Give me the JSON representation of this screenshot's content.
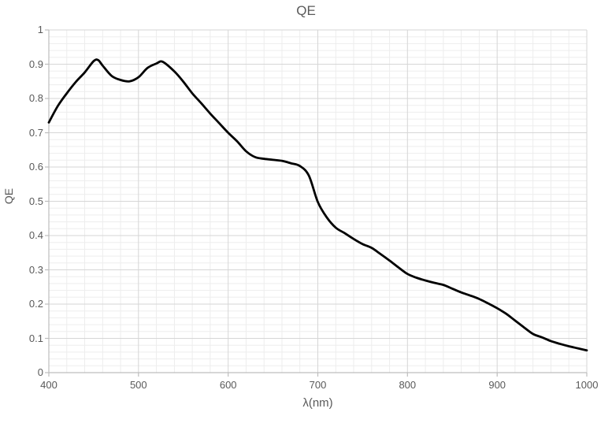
{
  "chart_data": {
    "type": "line",
    "title": "QE",
    "xlabel": "λ(nm)",
    "ylabel": "QE",
    "xlim": [
      400,
      1000
    ],
    "ylim": [
      0,
      1
    ],
    "x_major_unit": 100,
    "x_minor_unit": 20,
    "y_major_unit": 0.1,
    "y_minor_unit": 0.02,
    "grid": "major+minor",
    "legend": "none",
    "x_tick_labels": [
      "400",
      "500",
      "600",
      "700",
      "800",
      "900",
      "1000"
    ],
    "y_tick_labels": [
      "0",
      "0.1",
      "0.2",
      "0.3",
      "0.4",
      "0.5",
      "0.6",
      "0.7",
      "0.8",
      "0.9",
      "1"
    ],
    "colors": {
      "line": "#000000",
      "grid_major": "#d6d6d6",
      "grid_minor": "#ededed",
      "axis": "#bdbdbd",
      "text": "#595959"
    },
    "series": [
      {
        "name": "QE",
        "smooth": true,
        "points": [
          [
            400,
            0.73
          ],
          [
            410,
            0.778
          ],
          [
            420,
            0.815
          ],
          [
            430,
            0.848
          ],
          [
            440,
            0.876
          ],
          [
            450,
            0.909
          ],
          [
            455,
            0.912
          ],
          [
            460,
            0.896
          ],
          [
            470,
            0.866
          ],
          [
            480,
            0.854
          ],
          [
            490,
            0.85
          ],
          [
            500,
            0.862
          ],
          [
            510,
            0.889
          ],
          [
            520,
            0.902
          ],
          [
            527,
            0.907
          ],
          [
            540,
            0.879
          ],
          [
            550,
            0.849
          ],
          [
            560,
            0.815
          ],
          [
            570,
            0.786
          ],
          [
            580,
            0.756
          ],
          [
            590,
            0.728
          ],
          [
            600,
            0.7
          ],
          [
            610,
            0.675
          ],
          [
            620,
            0.646
          ],
          [
            630,
            0.629
          ],
          [
            640,
            0.624
          ],
          [
            650,
            0.621
          ],
          [
            660,
            0.618
          ],
          [
            670,
            0.611
          ],
          [
            680,
            0.603
          ],
          [
            690,
            0.575
          ],
          [
            700,
            0.498
          ],
          [
            710,
            0.453
          ],
          [
            720,
            0.423
          ],
          [
            730,
            0.407
          ],
          [
            740,
            0.39
          ],
          [
            750,
            0.375
          ],
          [
            760,
            0.364
          ],
          [
            770,
            0.346
          ],
          [
            780,
            0.327
          ],
          [
            790,
            0.307
          ],
          [
            800,
            0.288
          ],
          [
            810,
            0.277
          ],
          [
            820,
            0.269
          ],
          [
            830,
            0.262
          ],
          [
            840,
            0.256
          ],
          [
            850,
            0.245
          ],
          [
            860,
            0.234
          ],
          [
            870,
            0.225
          ],
          [
            880,
            0.215
          ],
          [
            890,
            0.202
          ],
          [
            900,
            0.188
          ],
          [
            910,
            0.172
          ],
          [
            920,
            0.152
          ],
          [
            930,
            0.132
          ],
          [
            940,
            0.113
          ],
          [
            950,
            0.103
          ],
          [
            960,
            0.092
          ],
          [
            970,
            0.084
          ],
          [
            980,
            0.077
          ],
          [
            990,
            0.071
          ],
          [
            1000,
            0.065
          ]
        ]
      }
    ]
  }
}
